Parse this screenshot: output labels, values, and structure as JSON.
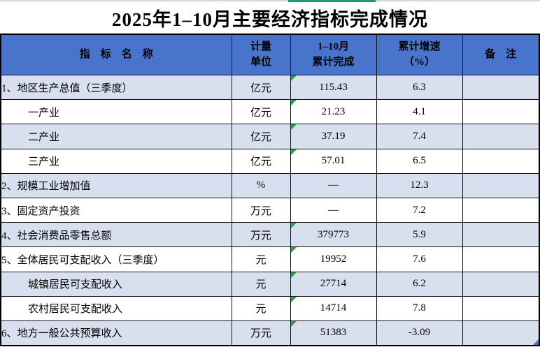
{
  "title": "2025年1–10月主要经济指标完成情况",
  "colors": {
    "header_bg": "#4875CB",
    "band_bg": "#D8E0F0",
    "flag_green": "#2F9E44",
    "accent_green": "#1F9D68",
    "handle_blue": "#4472C4",
    "strip_gray": "#d7d7d7"
  },
  "table": {
    "columns": [
      {
        "label": "指　标　名　称"
      },
      {
        "label": "计量\n单位"
      },
      {
        "label": "1–10月\n累计完成"
      },
      {
        "label": "累计增速\n（%）"
      },
      {
        "label": "备　注"
      }
    ],
    "rows": [
      {
        "name": "1、地区生产总值（三季度）",
        "indent": false,
        "unit": "亿元",
        "value": "115.43",
        "value_flag": true,
        "growth": "6.3",
        "note": ""
      },
      {
        "name": "一产业",
        "indent": true,
        "unit": "亿元",
        "value": "21.23",
        "value_flag": true,
        "growth": "4.1",
        "note": ""
      },
      {
        "name": "二产业",
        "indent": true,
        "unit": "亿元",
        "value": "37.19",
        "value_flag": true,
        "growth": "7.4",
        "note": ""
      },
      {
        "name": "三产业",
        "indent": true,
        "unit": "亿元",
        "value": "57.01",
        "value_flag": true,
        "growth": "6.5",
        "note": ""
      },
      {
        "name": "2、规模工业增加值",
        "indent": false,
        "unit": "%",
        "value": "—",
        "value_flag": false,
        "growth": "12.3",
        "note": ""
      },
      {
        "name": "3、固定资产投资",
        "indent": false,
        "unit": "万元",
        "value": "—",
        "value_flag": false,
        "growth": "7.2",
        "note": ""
      },
      {
        "name": "4、社会消费品零售总额",
        "indent": false,
        "unit": "万元",
        "value": "379773",
        "value_flag": true,
        "growth": "5.9",
        "note": ""
      },
      {
        "name": "5、全体居民可支配收入（三季度）",
        "indent": false,
        "unit": "元",
        "value": "19952",
        "value_flag": true,
        "growth": "7.6",
        "note": ""
      },
      {
        "name": "城镇居民可支配收入",
        "indent": true,
        "unit": "元",
        "value": "27714",
        "value_flag": true,
        "growth": "6.2",
        "note": ""
      },
      {
        "name": "农村居民可支配收入",
        "indent": true,
        "unit": "元",
        "value": "14714",
        "value_flag": true,
        "growth": "7.8",
        "note": ""
      },
      {
        "name": "6、地方一般公共预算收入",
        "indent": false,
        "unit": "万元",
        "value": "51383",
        "value_flag": true,
        "growth": "-3.09",
        "note": ""
      }
    ]
  }
}
